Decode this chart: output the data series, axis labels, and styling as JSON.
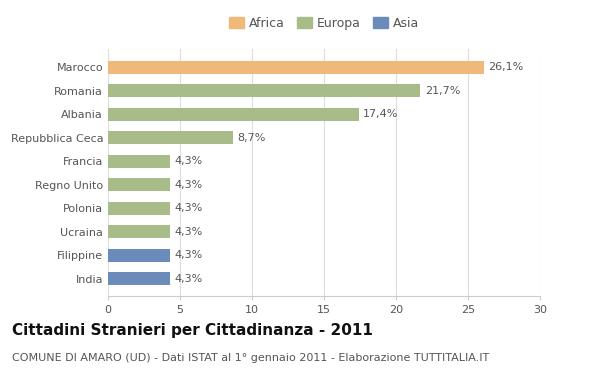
{
  "categories": [
    "India",
    "Filippine",
    "Ucraina",
    "Polonia",
    "Regno Unito",
    "Francia",
    "Repubblica Ceca",
    "Albania",
    "Romania",
    "Marocco"
  ],
  "values": [
    4.3,
    4.3,
    4.3,
    4.3,
    4.3,
    4.3,
    8.7,
    17.4,
    21.7,
    26.1
  ],
  "colors": [
    "#6b8cba",
    "#6b8cba",
    "#a8bc8a",
    "#a8bc8a",
    "#a8bc8a",
    "#a8bc8a",
    "#a8bc8a",
    "#a8bc8a",
    "#a8bc8a",
    "#f0b97a"
  ],
  "labels": [
    "4,3%",
    "4,3%",
    "4,3%",
    "4,3%",
    "4,3%",
    "4,3%",
    "8,7%",
    "17,4%",
    "21,7%",
    "26,1%"
  ],
  "xlim": [
    0,
    30
  ],
  "xticks": [
    0,
    5,
    10,
    15,
    20,
    25,
    30
  ],
  "title": "Cittadini Stranieri per Cittadinanza - 2011",
  "subtitle": "COMUNE DI AMARO (UD) - Dati ISTAT al 1° gennaio 2011 - Elaborazione TUTTITALIA.IT",
  "legend_labels": [
    "Africa",
    "Europa",
    "Asia"
  ],
  "legend_colors": [
    "#f0b97a",
    "#a8bc8a",
    "#6b8cba"
  ],
  "background_color": "#ffffff",
  "bar_height": 0.55,
  "title_fontsize": 11,
  "subtitle_fontsize": 8,
  "label_fontsize": 8,
  "tick_fontsize": 8,
  "legend_fontsize": 9
}
